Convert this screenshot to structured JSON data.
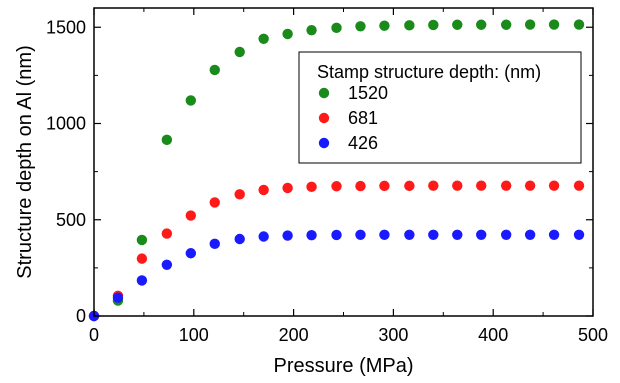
{
  "chart_data": {
    "type": "scatter",
    "xlabel": "Pressure (MPa)",
    "ylabel": "Structure depth on Al (nm)",
    "xlim": [
      0,
      500
    ],
    "ylim": [
      0,
      1600
    ],
    "xticks": [
      0,
      100,
      200,
      300,
      400,
      500
    ],
    "yticks": [
      0,
      500,
      1000,
      1500
    ],
    "grid": false,
    "legend": {
      "title": "Stamp structure depth: (nm)",
      "position": "top-right"
    },
    "x": [
      0,
      24,
      48,
      73,
      97,
      121,
      146,
      170,
      194,
      218,
      243,
      267,
      291,
      316,
      340,
      364,
      388,
      413,
      437,
      461,
      486
    ],
    "series": [
      {
        "name": "1520",
        "color": "#1a8a1a",
        "values": [
          0,
          80,
          395,
          915,
          1120,
          1278,
          1372,
          1440,
          1465,
          1485,
          1497,
          1505,
          1508,
          1510,
          1512,
          1513,
          1513,
          1513,
          1514,
          1514,
          1514
        ]
      },
      {
        "name": "681",
        "color": "#ff1a1a",
        "values": [
          0,
          105,
          298,
          428,
          522,
          590,
          632,
          655,
          665,
          671,
          674,
          675,
          676,
          676,
          677,
          677,
          677,
          677,
          677,
          677,
          677
        ]
      },
      {
        "name": "426",
        "color": "#1a1aff",
        "values": [
          0,
          95,
          185,
          266,
          326,
          375,
          400,
          413,
          418,
          420,
          421,
          422,
          422,
          422,
          422,
          422,
          422,
          422,
          422,
          422,
          422
        ]
      }
    ]
  }
}
